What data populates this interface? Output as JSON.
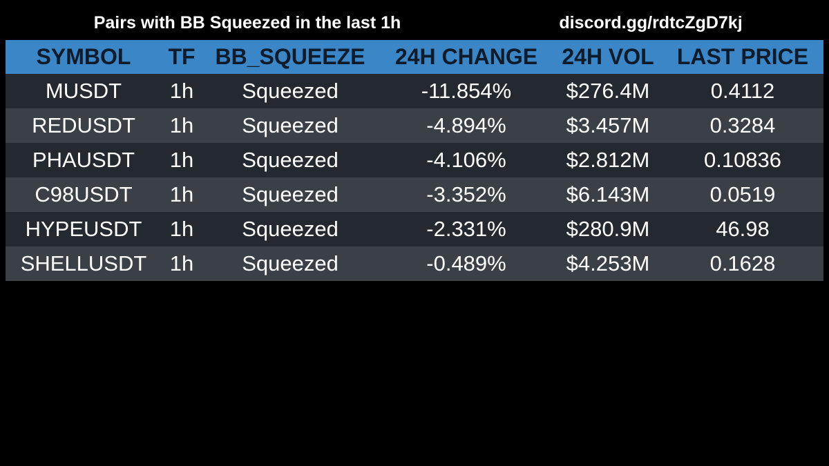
{
  "header": {
    "title": "Pairs with BB Squeezed in the last 1h",
    "link": "discord.gg/rdtcZgD7kj"
  },
  "table": {
    "columns": [
      "SYMBOL",
      "TF",
      "BB_SQUEEZE",
      "24H CHANGE",
      "24H VOL",
      "LAST PRICE"
    ],
    "rows": [
      [
        "MUSDT",
        "1h",
        "Squeezed",
        "-11.854%",
        "$276.4M",
        "0.4112"
      ],
      [
        "REDUSDT",
        "1h",
        "Squeezed",
        "-4.894%",
        "$3.457M",
        "0.3284"
      ],
      [
        "PHAUSDT",
        "1h",
        "Squeezed",
        "-4.106%",
        "$2.812M",
        "0.10836"
      ],
      [
        "C98USDT",
        "1h",
        "Squeezed",
        "-3.352%",
        "$6.143M",
        "0.0519"
      ],
      [
        "HYPEUSDT",
        "1h",
        "Squeezed",
        "-2.331%",
        "$280.9M",
        "46.98"
      ],
      [
        "SHELLUSDT",
        "1h",
        "Squeezed",
        "-0.489%",
        "$4.253M",
        "0.1628"
      ]
    ]
  }
}
